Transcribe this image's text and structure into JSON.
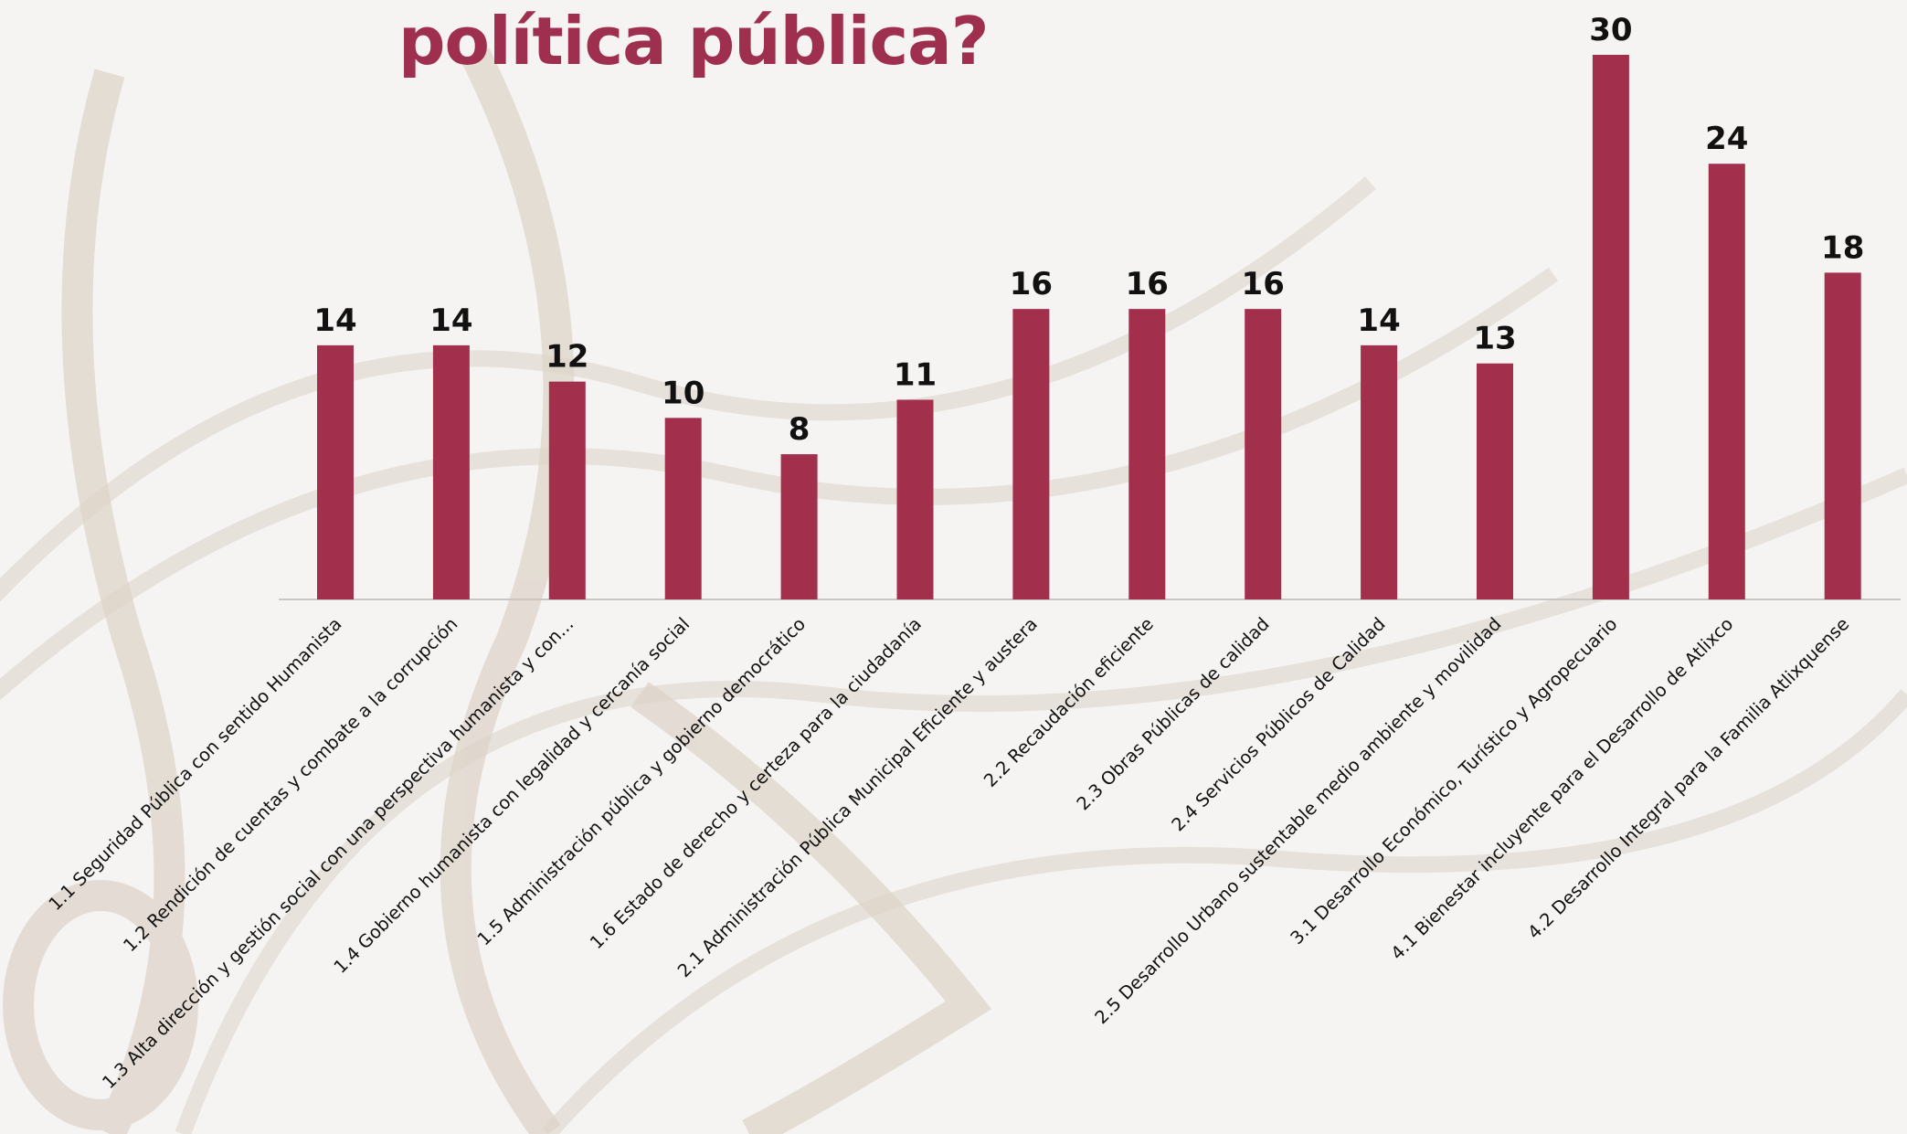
{
  "title": "política pública?",
  "colors": {
    "bar": "#a2304d",
    "title": "#9f2f4f",
    "axis": "#c9c6c3"
  },
  "chart_data": {
    "type": "bar",
    "categories": [
      "1.1 Seguridad Pública con sentido Humanista",
      "1.2 Rendición de cuentas y combate a la corrupción",
      "1.3 Alta dirección y gestión social con una perspectiva humanista y con...",
      "1.4 Gobierno humanista con legalidad y cercanía social",
      "1.5 Administración pública y gobierno democrático",
      "1.6 Estado de derecho y certeza para la ciudadanía",
      "2.1 Administración Pública Municipal Eficiente y austera",
      "2.2 Recaudación eficiente",
      "2.3 Obras Públicas de calidad",
      "2.4 Servicios Públicos de Calidad",
      "2.5 Desarrollo Urbano sustentable medio ambiente y movilidad",
      "3.1 Desarrollo Económico, Turístico y Agropecuario",
      "4.1 Bienestar incluyente para el Desarrollo de Atlixco",
      "4.2 Desarrollo Integral para la Familia Atlixquense"
    ],
    "values": [
      14,
      14,
      12,
      10,
      8,
      11,
      16,
      16,
      16,
      14,
      13,
      30,
      24,
      18
    ],
    "ylim": [
      0,
      30
    ],
    "data_labels": true,
    "grid": false,
    "legend": "none"
  }
}
